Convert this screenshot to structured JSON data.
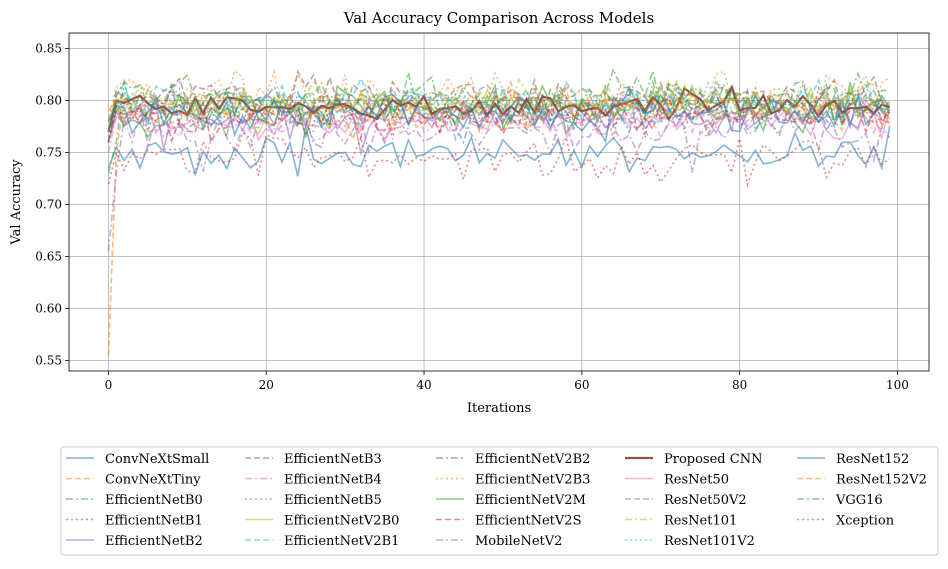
{
  "chart_data": {
    "type": "line",
    "title": "Val Accuracy Comparison Across Models",
    "xlabel": "Iterations",
    "ylabel": "Val Accuracy",
    "xlim": [
      -5,
      104
    ],
    "ylim": [
      0.54,
      0.865
    ],
    "xticks": [
      0,
      20,
      40,
      60,
      80,
      100
    ],
    "yticks": [
      0.55,
      0.6,
      0.65,
      0.7,
      0.75,
      0.8,
      0.85
    ],
    "grid": true,
    "legend_position": "bottom",
    "legend_columns": 5,
    "x_start": 0,
    "x_end": 99,
    "series": [
      {
        "name": "ConvNeXtSmall",
        "color": "#1f77b4",
        "dash": "solid",
        "start": 0.735,
        "level": 0.75,
        "spread": 0.012,
        "seed": 3
      },
      {
        "name": "ConvNeXtTiny",
        "color": "#ff7f0e",
        "dash": "dashed",
        "start": 0.555,
        "level": 0.79,
        "spread": 0.01,
        "seed": 7
      },
      {
        "name": "EfficientNetB0",
        "color": "#2ca02c",
        "dash": "dashdot",
        "start": 0.73,
        "level": 0.8,
        "spread": 0.013,
        "seed": 11
      },
      {
        "name": "EfficientNetB1",
        "color": "#d62728",
        "dash": "dotted",
        "start": 0.72,
        "level": 0.745,
        "spread": 0.014,
        "seed": 13
      },
      {
        "name": "EfficientNetB2",
        "color": "#9467bd",
        "dash": "solid",
        "start": 0.76,
        "level": 0.785,
        "spread": 0.011,
        "seed": 17
      },
      {
        "name": "EfficientNetB3",
        "color": "#8c564b",
        "dash": "dashed",
        "start": 0.77,
        "level": 0.805,
        "spread": 0.012,
        "seed": 19
      },
      {
        "name": "EfficientNetB4",
        "color": "#e377c2",
        "dash": "dashdot",
        "start": 0.75,
        "level": 0.78,
        "spread": 0.011,
        "seed": 23
      },
      {
        "name": "EfficientNetB5",
        "color": "#7f7f7f",
        "dash": "dotted",
        "start": 0.76,
        "level": 0.79,
        "spread": 0.012,
        "seed": 29
      },
      {
        "name": "EfficientNetV2B0",
        "color": "#bcbd22",
        "dash": "solid",
        "start": 0.78,
        "level": 0.795,
        "spread": 0.01,
        "seed": 31
      },
      {
        "name": "EfficientNetV2B1",
        "color": "#17becf",
        "dash": "dashed",
        "start": 0.77,
        "level": 0.8,
        "spread": 0.012,
        "seed": 37
      },
      {
        "name": "EfficientNetV2B2",
        "color": "#1f77b4",
        "dash": "dashdot",
        "start": 0.76,
        "level": 0.79,
        "spread": 0.012,
        "seed": 41
      },
      {
        "name": "EfficientNetV2B3",
        "color": "#ff7f0e",
        "dash": "dotted",
        "start": 0.78,
        "level": 0.808,
        "spread": 0.013,
        "seed": 43
      },
      {
        "name": "EfficientNetV2M",
        "color": "#2ca02c",
        "dash": "solid",
        "start": 0.77,
        "level": 0.79,
        "spread": 0.014,
        "seed": 47
      },
      {
        "name": "EfficientNetV2S",
        "color": "#d62728",
        "dash": "dashed",
        "start": 0.76,
        "level": 0.785,
        "spread": 0.012,
        "seed": 53
      },
      {
        "name": "MobileNetV2",
        "color": "#9467bd",
        "dash": "dashdot",
        "start": 0.655,
        "level": 0.77,
        "spread": 0.013,
        "seed": 59
      },
      {
        "name": "Proposed CNN",
        "color": "#8c564b",
        "dash": "solid",
        "start": 0.77,
        "level": 0.795,
        "spread": 0.008,
        "seed": 61,
        "bold": true
      },
      {
        "name": "ResNet50",
        "color": "#e377c2",
        "dash": "solid",
        "start": 0.76,
        "level": 0.78,
        "spread": 0.011,
        "seed": 67
      },
      {
        "name": "ResNet50V2",
        "color": "#7f7f7f",
        "dash": "dashed",
        "start": 0.77,
        "level": 0.795,
        "spread": 0.012,
        "seed": 71
      },
      {
        "name": "ResNet101",
        "color": "#bcbd22",
        "dash": "dashdot",
        "start": 0.78,
        "level": 0.8,
        "spread": 0.011,
        "seed": 73
      },
      {
        "name": "ResNet101V2",
        "color": "#17becf",
        "dash": "dotted",
        "start": 0.77,
        "level": 0.795,
        "spread": 0.012,
        "seed": 79
      },
      {
        "name": "ResNet152",
        "color": "#1f77b4",
        "dash": "solid",
        "start": 0.78,
        "level": 0.79,
        "spread": 0.012,
        "seed": 83
      },
      {
        "name": "ResNet152V2",
        "color": "#ff7f0e",
        "dash": "dashed",
        "start": 0.79,
        "level": 0.795,
        "spread": 0.011,
        "seed": 89
      },
      {
        "name": "VGG16",
        "color": "#2ca02c",
        "dash": "dashdot",
        "start": 0.76,
        "level": 0.8,
        "spread": 0.013,
        "seed": 97
      },
      {
        "name": "Xception",
        "color": "#d62728",
        "dash": "dotted",
        "start": 0.76,
        "level": 0.79,
        "spread": 0.013,
        "seed": 101
      }
    ]
  }
}
